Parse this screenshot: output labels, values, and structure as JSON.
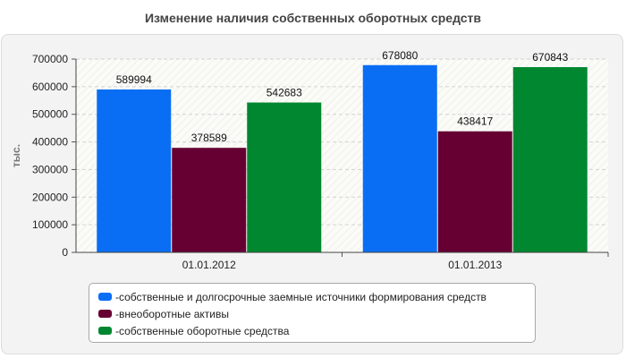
{
  "chart_data": {
    "type": "bar",
    "title": "Изменение наличия собственных оборотных средств",
    "xlabel": "",
    "ylabel": "тыс.",
    "categories": [
      "01.01.2012",
      "01.01.2013"
    ],
    "series": [
      {
        "name": "собственные и долгосрочные заемные источники формирования средств",
        "color": "#0a6ef5",
        "values": [
          589994,
          678080
        ]
      },
      {
        "name": "внеоборотные активы",
        "color": "#660033",
        "values": [
          378589,
          438417
        ]
      },
      {
        "name": "собственные оборотные средства",
        "color": "#00872f",
        "values": [
          542683,
          670843
        ]
      }
    ],
    "ylim": [
      0,
      700000
    ],
    "yticks": [
      0,
      100000,
      200000,
      300000,
      400000,
      500000,
      600000,
      700000
    ],
    "grid": true,
    "legend_position": "bottom",
    "legend_prefix": "- "
  }
}
